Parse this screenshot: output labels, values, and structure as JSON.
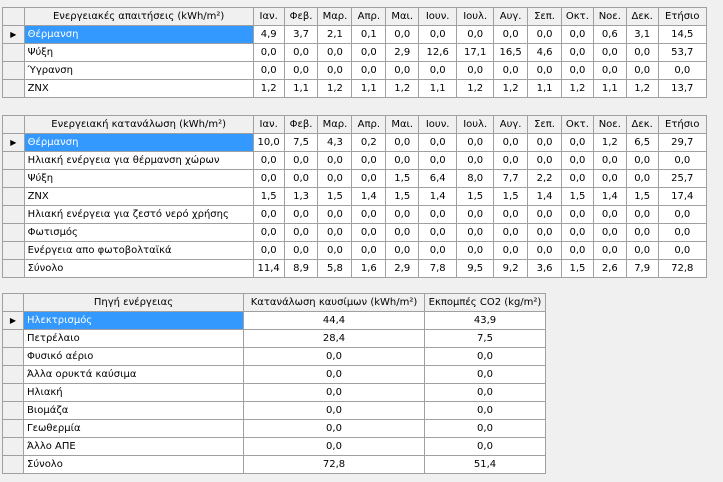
{
  "table1": {
    "header": [
      "Ενεργειακές απαιτήσεις (kWh/m²)",
      "Ιαν.",
      "Φεβ.",
      "Μαρ.",
      "Απρ.",
      "Μαι.",
      "Ιουν.",
      "Ιουλ.",
      "Αυγ.",
      "Σεπ.",
      "Οκτ.",
      "Νοε.",
      "Δεκ.",
      "Ετήσιο"
    ],
    "rows": [
      {
        "label": "Θέρμανση",
        "values": [
          "4,9",
          "3,7",
          "2,1",
          "0,1",
          "0,0",
          "0,0",
          "0,0",
          "0,0",
          "0,0",
          "0,0",
          "0,6",
          "3,1",
          "14,5"
        ]
      },
      {
        "label": "Ψύξη",
        "values": [
          "0,0",
          "0,0",
          "0,0",
          "0,0",
          "2,9",
          "12,6",
          "17,1",
          "16,5",
          "4,6",
          "0,0",
          "0,0",
          "0,0",
          "53,7"
        ]
      },
      {
        "label": "Ύγρανση",
        "values": [
          "0,0",
          "0,0",
          "0,0",
          "0,0",
          "0,0",
          "0,0",
          "0,0",
          "0,0",
          "0,0",
          "0,0",
          "0,0",
          "0,0",
          "0,0"
        ]
      },
      {
        "label": "ΖΝΧ",
        "values": [
          "1,2",
          "1,1",
          "1,2",
          "1,1",
          "1,2",
          "1,1",
          "1,2",
          "1,2",
          "1,1",
          "1,2",
          "1,1",
          "1,2",
          "13,7"
        ]
      }
    ]
  },
  "table2": {
    "header": [
      "Ενεργειακή κατανάλωση (kWh/m²)",
      "Ιαν.",
      "Φεβ.",
      "Μαρ.",
      "Απρ.",
      "Μαι.",
      "Ιουν.",
      "Ιουλ.",
      "Αυγ.",
      "Σεπ.",
      "Οκτ.",
      "Νοε.",
      "Δεκ.",
      "Ετήσιο"
    ],
    "rows": [
      {
        "label": "Θέρμανση",
        "values": [
          "10,0",
          "7,5",
          "4,3",
          "0,2",
          "0,0",
          "0,0",
          "0,0",
          "0,0",
          "0,0",
          "0,0",
          "1,2",
          "6,5",
          "29,7"
        ]
      },
      {
        "label": "Ηλιακή ενέργεια για θέρμανση χώρων",
        "values": [
          "0,0",
          "0,0",
          "0,0",
          "0,0",
          "0,0",
          "0,0",
          "0,0",
          "0,0",
          "0,0",
          "0,0",
          "0,0",
          "0,0",
          "0,0"
        ]
      },
      {
        "label": "Ψύξη",
        "values": [
          "0,0",
          "0,0",
          "0,0",
          "0,0",
          "1,5",
          "6,4",
          "8,0",
          "7,7",
          "2,2",
          "0,0",
          "0,0",
          "0,0",
          "25,7"
        ]
      },
      {
        "label": "ΖΝΧ",
        "values": [
          "1,5",
          "1,3",
          "1,5",
          "1,4",
          "1,5",
          "1,4",
          "1,5",
          "1,5",
          "1,4",
          "1,5",
          "1,4",
          "1,5",
          "17,4"
        ]
      },
      {
        "label": "Ηλιακή ενέργεια για ζεστό νερό χρήσης",
        "values": [
          "0,0",
          "0,0",
          "0,0",
          "0,0",
          "0,0",
          "0,0",
          "0,0",
          "0,0",
          "0,0",
          "0,0",
          "0,0",
          "0,0",
          "0,0"
        ]
      },
      {
        "label": "Φωτισμός",
        "values": [
          "0,0",
          "0,0",
          "0,0",
          "0,0",
          "0,0",
          "0,0",
          "0,0",
          "0,0",
          "0,0",
          "0,0",
          "0,0",
          "0,0",
          "0,0"
        ]
      },
      {
        "label": "Ενέργεια απο φωτοβολταϊκά",
        "values": [
          "0,0",
          "0,0",
          "0,0",
          "0,0",
          "0,0",
          "0,0",
          "0,0",
          "0,0",
          "0,0",
          "0,0",
          "0,0",
          "0,0",
          "0,0"
        ]
      },
      {
        "label": "Σύνολο",
        "values": [
          "11,4",
          "8,9",
          "5,8",
          "1,6",
          "2,9",
          "7,8",
          "9,5",
          "9,2",
          "3,6",
          "1,5",
          "2,6",
          "7,9",
          "72,8"
        ]
      }
    ]
  },
  "table3": {
    "header": [
      "Πηγή ενέργειας",
      "Κατανάλωση καυσίμων (kWh/m²)",
      "Εκπομπές CO2 (kg/m²)"
    ],
    "rows": [
      {
        "label": "Ηλεκτρισμός",
        "values": [
          "44,4",
          "43,9"
        ]
      },
      {
        "label": "Πετρέλαιο",
        "values": [
          "28,4",
          "7,5"
        ]
      },
      {
        "label": "Φυσικό αέριο",
        "values": [
          "0,0",
          "0,0"
        ]
      },
      {
        "label": "Άλλα ορυκτά καύσιμα",
        "values": [
          "0,0",
          "0,0"
        ]
      },
      {
        "label": "Ηλιακή",
        "values": [
          "0,0",
          "0,0"
        ]
      },
      {
        "label": "Βιομάζα",
        "values": [
          "0,0",
          "0,0"
        ]
      },
      {
        "label": "Γεωθερμία",
        "values": [
          "0,0",
          "0,0"
        ]
      },
      {
        "label": "Άλλο ΑΠΕ",
        "values": [
          "0,0",
          "0,0"
        ]
      },
      {
        "label": "Σύνολο",
        "values": [
          "72,8",
          "51,4"
        ]
      }
    ]
  },
  "selected_row_indicator": "▶",
  "colors": {
    "selection": "#3399ff",
    "background": "#f0f0f0",
    "gridline": "#a0a0a0"
  }
}
